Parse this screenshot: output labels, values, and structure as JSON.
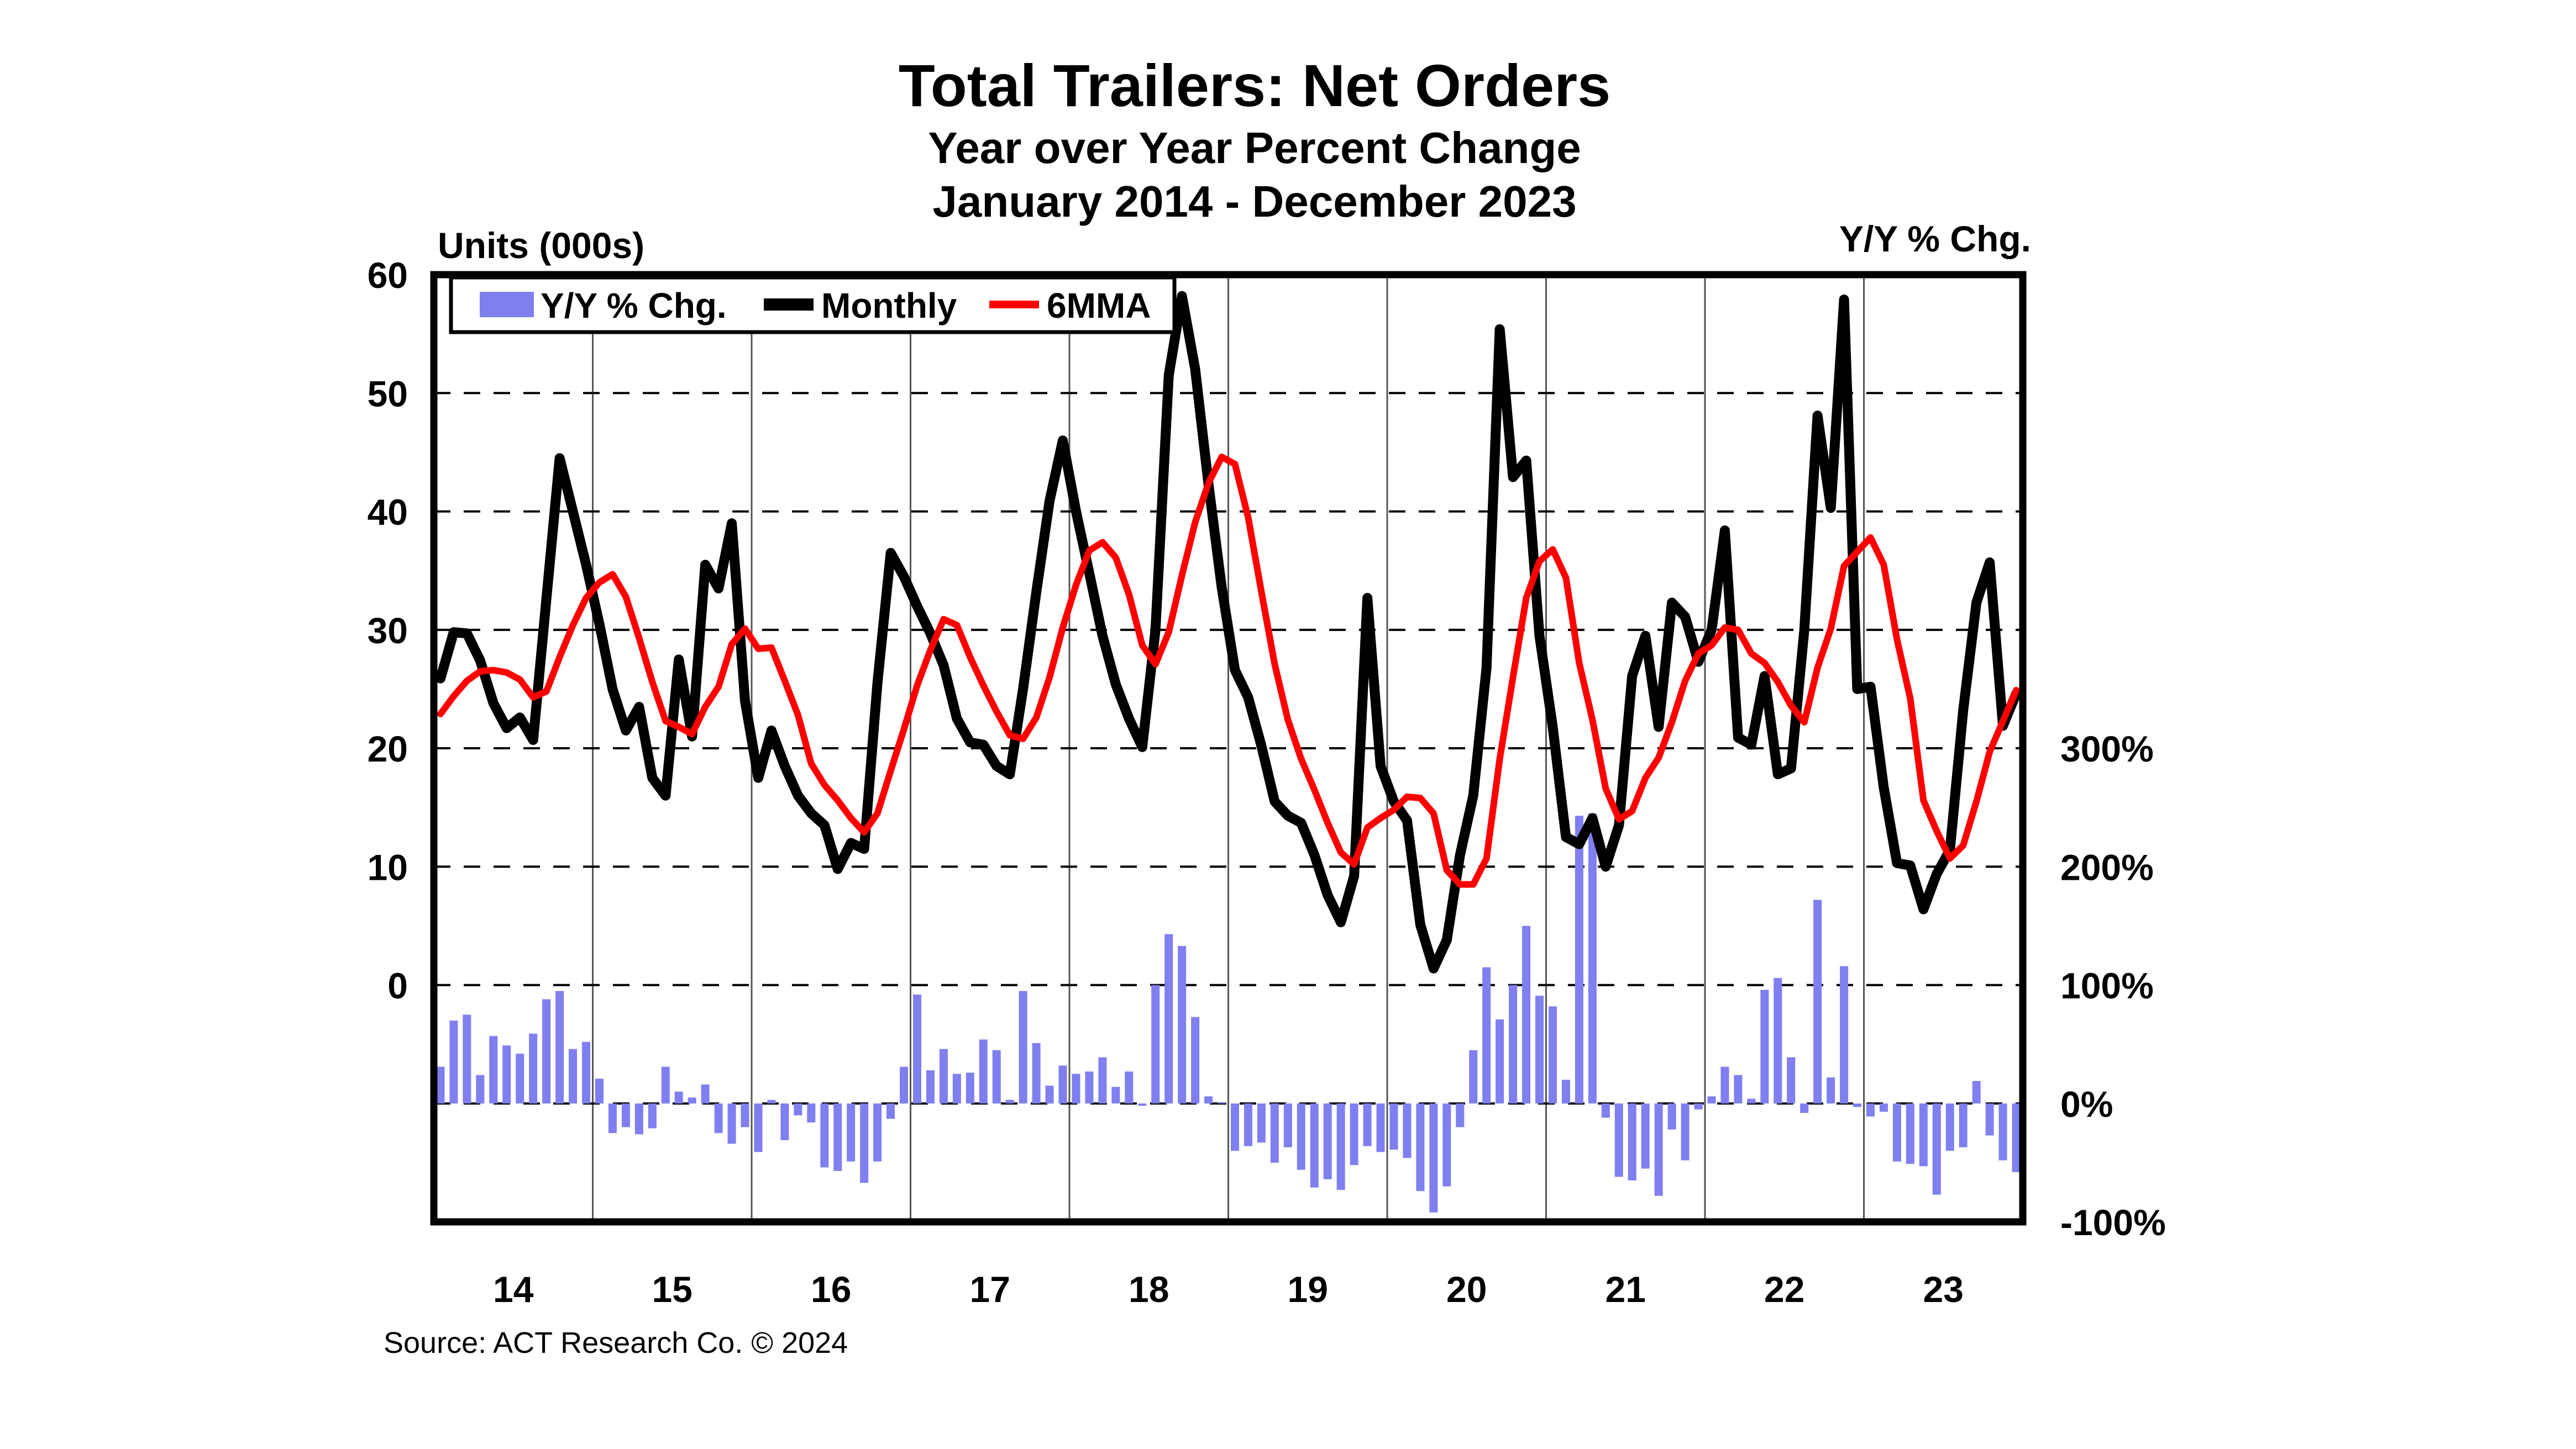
{
  "header": {
    "title": "Total Trailers: Net Orders",
    "subtitle": "Year over Year Percent Change",
    "period": "January 2014 - December 2023"
  },
  "left_axis_label": "Units (000s)",
  "right_axis_label": "Y/Y % Chg.",
  "source": "Source: ACT Research Co. © 2024",
  "legend": {
    "items": [
      {
        "label": "Y/Y % Chg.",
        "swatch": "bar",
        "color": "#7f7ff0"
      },
      {
        "label": "Monthly",
        "swatch": "line",
        "color": "#000000"
      },
      {
        "label": "6MMA",
        "swatch": "line",
        "color": "#ff0000"
      }
    ]
  },
  "chart_data": {
    "type": "bar+line composite, monthly time series",
    "x_start": "2014-01",
    "x_end": "2023-12",
    "months": 120,
    "year_tick_labels": [
      "14",
      "15",
      "16",
      "17",
      "18",
      "19",
      "20",
      "21",
      "22",
      "23"
    ],
    "left_axis": {
      "label": "Units (000s)",
      "ticks": [
        60,
        50,
        40,
        30,
        20,
        10,
        0
      ],
      "plot_range": [
        -20,
        60
      ],
      "grid": "dashed horizontal at 50,40,30,20,10,0"
    },
    "right_axis": {
      "label": "Y/Y % Chg.",
      "ticks": [
        "300%",
        "200%",
        "100%",
        "0%",
        "-100%"
      ],
      "tick_values": [
        300,
        200,
        100,
        0,
        -100
      ],
      "plot_range": [
        -100,
        300
      ]
    },
    "legend_position": "top-left inside plot",
    "series": [
      {
        "name": "Y/Y % Chg.",
        "type": "bar",
        "axis": "right",
        "color": "#7f7ff0",
        "units": "percent",
        "values": [
          31,
          70,
          75,
          24,
          57,
          49,
          42,
          59,
          88,
          95,
          46,
          52,
          21,
          -25,
          -20,
          -26,
          -21,
          31,
          10,
          5,
          16,
          -25,
          -34,
          -20,
          -41,
          3,
          -31,
          -10,
          -16,
          -54,
          -57,
          -49,
          -67,
          -49,
          -13,
          31,
          92,
          28,
          46,
          25,
          26,
          54,
          45,
          3,
          95,
          51,
          15,
          32,
          25,
          27,
          39,
          14,
          27,
          -2,
          100,
          143,
          133,
          73,
          6,
          1,
          -40,
          -36,
          -33,
          -50,
          -37,
          -56,
          -71,
          -64,
          -73,
          -52,
          -36,
          -41,
          -39,
          -46,
          -74,
          -92,
          -70,
          -20,
          45,
          115,
          71,
          100,
          150,
          91,
          82,
          20,
          243,
          245,
          -12,
          -62,
          -65,
          -55,
          -78,
          -22,
          -48,
          -5,
          6,
          31,
          24,
          4,
          96,
          106,
          39,
          -8,
          172,
          22,
          116,
          -3,
          -11,
          -7,
          -49,
          -51,
          -53,
          -77,
          -40,
          -37,
          19,
          -27,
          -48,
          -58
        ]
      },
      {
        "name": "Monthly",
        "type": "line",
        "axis": "left",
        "color": "#000000",
        "units": "thousand units",
        "values": [
          25.9,
          29.8,
          29.7,
          27.4,
          23.8,
          21.7,
          22.6,
          20.7,
          32.6,
          44.5,
          40.0,
          35.5,
          30.5,
          25.0,
          21.5,
          23.5,
          17.5,
          16.0,
          27.5,
          21.0,
          35.5,
          33.5,
          39.0,
          24.0,
          17.5,
          21.5,
          18.5,
          16.0,
          14.5,
          13.5,
          9.8,
          12.0,
          11.5,
          25.5,
          36.5,
          34.5,
          32.0,
          29.7,
          27.0,
          22.5,
          20.5,
          20.3,
          18.5,
          17.8,
          25.0,
          33.2,
          40.9,
          46.0,
          40.0,
          34.8,
          29.5,
          25.4,
          22.5,
          20.1,
          30.0,
          51.5,
          58.2,
          52.0,
          42.3,
          33.6,
          26.6,
          24.3,
          20.2,
          15.5,
          14.3,
          13.7,
          11.0,
          7.6,
          5.3,
          9.2,
          32.7,
          18.5,
          15.5,
          13.9,
          5.1,
          1.4,
          3.8,
          11.0,
          16.0,
          26.8,
          55.4,
          42.9,
          44.3,
          29.5,
          21.8,
          12.5,
          11.9,
          14.1,
          10.0,
          13.5,
          26.1,
          29.5,
          21.8,
          32.3,
          31.1,
          27.3,
          30.0,
          38.4,
          20.9,
          20.3,
          26.1,
          17.8,
          18.3,
          30.0,
          48.1,
          40.3,
          57.9,
          25.0,
          25.2,
          16.7,
          10.3,
          10.1,
          6.4,
          9.4,
          11.4,
          23.2,
          32.3,
          35.7,
          21.9,
          24.6
        ]
      },
      {
        "name": "6MMA",
        "type": "line",
        "axis": "left",
        "color": "#ff0000",
        "units": "thousand units",
        "values": [
          22.9,
          24.4,
          25.7,
          26.5,
          26.6,
          26.4,
          25.8,
          24.3,
          24.8,
          27.7,
          30.4,
          32.7,
          34.0,
          34.7,
          32.8,
          29.3,
          25.6,
          22.3,
          21.8,
          21.2,
          23.5,
          25.2,
          28.8,
          30.1,
          28.4,
          28.5,
          25.7,
          22.8,
          18.7,
          16.9,
          15.6,
          14.1,
          12.9,
          14.5,
          18.1,
          21.6,
          25.3,
          28.3,
          30.9,
          30.4,
          27.7,
          25.3,
          23.1,
          21.1,
          20.8,
          22.6,
          26.0,
          30.2,
          33.8,
          36.7,
          37.4,
          36.1,
          33.0,
          28.7,
          27.1,
          29.8,
          34.6,
          39.1,
          42.4,
          44.6,
          44.0,
          39.5,
          33.2,
          27.1,
          22.4,
          19.1,
          16.5,
          13.7,
          11.2,
          10.2,
          13.3,
          14.1,
          14.8,
          15.9,
          15.8,
          14.5,
          9.7,
          8.5,
          8.5,
          10.7,
          19.1,
          26.0,
          32.7,
          35.8,
          36.8,
          34.4,
          27.2,
          22.4,
          16.6,
          14.0,
          14.7,
          17.5,
          19.2,
          22.2,
          25.7,
          28.0,
          28.7,
          30.2,
          30.0,
          28.0,
          27.2,
          25.6,
          23.6,
          22.2,
          26.8,
          30.1,
          35.4,
          36.6,
          37.8,
          35.5,
          29.2,
          24.2,
          15.6,
          13.0,
          10.7,
          11.8,
          15.5,
          19.7,
          22.3,
          24.9
        ]
      }
    ]
  }
}
